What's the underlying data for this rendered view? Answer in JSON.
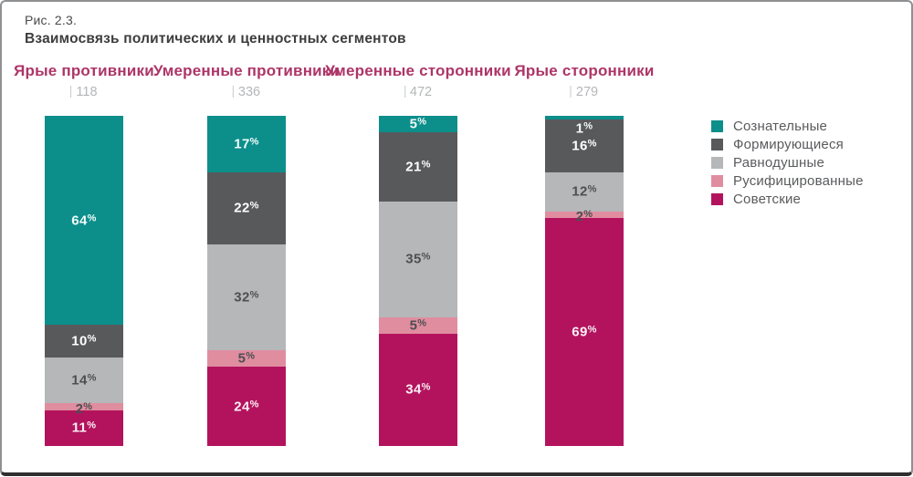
{
  "figure": {
    "number": "Рис. 2.3.",
    "title": "Взаимосвязь политических и ценностных сегментов"
  },
  "chart_data": {
    "type": "bar",
    "stacked": true,
    "orientation": "vertical",
    "unit": "%",
    "axis": "none",
    "grid": false,
    "legend_position": "right",
    "value_labels": "inside",
    "categories": [
      {
        "label": "Ярые противники",
        "count": 118
      },
      {
        "label": "Умеренные противники",
        "count": 336
      },
      {
        "label": "Умеренные сторонники",
        "count": 472
      },
      {
        "label": "Ярые сторонники",
        "count": 279
      }
    ],
    "series": [
      {
        "name": "Сознательные",
        "color": "#0C8F8B",
        "label_color": "#F2FBFA",
        "values": [
          64,
          17,
          5,
          1
        ]
      },
      {
        "name": "Формирующиеся",
        "color": "#58595B",
        "label_color": "#FFFFFF",
        "values": [
          10,
          22,
          21,
          16
        ]
      },
      {
        "name": "Равнодушные",
        "color": "#B5B7B9",
        "label_color": "#4D4F52",
        "values": [
          14,
          32,
          35,
          12
        ]
      },
      {
        "name": "Русифицированные",
        "color": "#E08DA0",
        "label_color": "#4D4F52",
        "values": [
          2,
          5,
          5,
          2
        ]
      },
      {
        "name": "Советские",
        "color": "#B3135D",
        "label_color": "#FBEFF5",
        "values": [
          11,
          24,
          34,
          69
        ]
      }
    ]
  },
  "colors": {
    "header_text": "#AD3568",
    "count_text": "#B4B6B8",
    "legend_text": "#5A5B5D"
  }
}
